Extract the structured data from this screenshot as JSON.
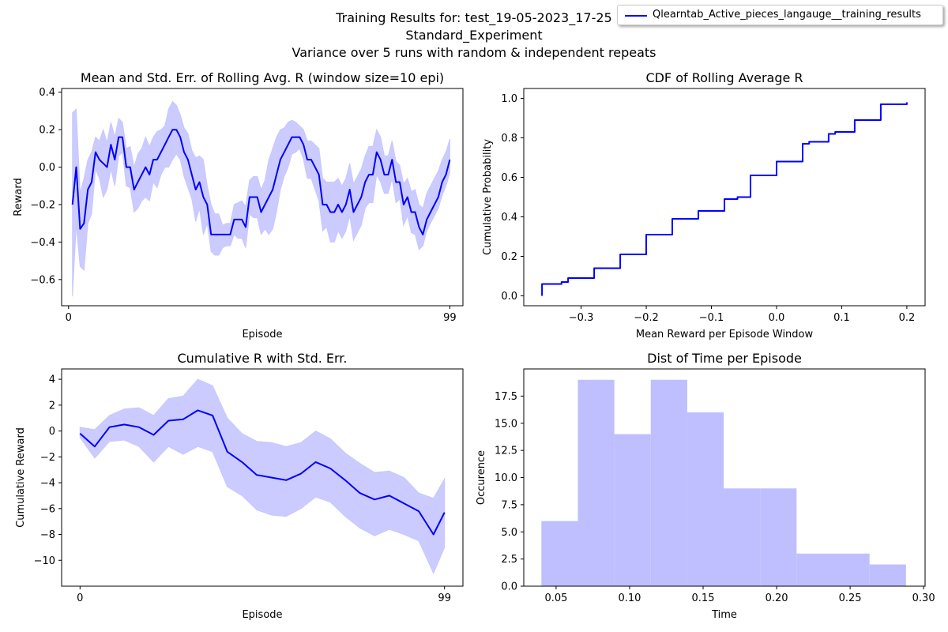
{
  "suptitle": {
    "line1": "Training Results for: test_19-05-2023_17-25",
    "line2": "Standard_Experiment",
    "line3": "Variance over 5 runs with random & independent repeats"
  },
  "legend": {
    "label": "Qlearntab_Active_pieces_langauge__training_results",
    "color": "#0000ff"
  },
  "colors": {
    "line": "#0000ff",
    "band": "#c8c8ff",
    "hist": "#bfbfff"
  },
  "chart_data": [
    {
      "type": "line",
      "title": "Mean and Std. Err. of Rolling Avg. R (window size=10 epi)",
      "xlabel": "Episode",
      "ylabel": "Reward",
      "xlim": [
        -1.8,
        102.4
      ],
      "ylim": [
        -0.74,
        0.42
      ],
      "xticks": [
        0,
        99
      ],
      "yticks": [
        -0.6,
        -0.4,
        -0.2,
        0.0,
        0.2,
        0.4
      ],
      "ytick_labels": [
        "−0.6",
        "−0.4",
        "−0.2",
        "0.0",
        "0.2",
        "0.4"
      ],
      "x": [
        1,
        2,
        3,
        4,
        5,
        6,
        7,
        8,
        9,
        10,
        11,
        12,
        13,
        14,
        15,
        16,
        17,
        18,
        19,
        20,
        21,
        22,
        23,
        24,
        25,
        26,
        27,
        28,
        29,
        30,
        31,
        32,
        33,
        34,
        35,
        36,
        37,
        38,
        39,
        40,
        41,
        42,
        43,
        44,
        45,
        46,
        47,
        48,
        49,
        50,
        51,
        52,
        53,
        54,
        55,
        56,
        57,
        58,
        59,
        60,
        61,
        62,
        63,
        64,
        65,
        66,
        67,
        68,
        69,
        70,
        71,
        72,
        73,
        74,
        75,
        76,
        77,
        78,
        79,
        80,
        81,
        82,
        83,
        84,
        85,
        86,
        87,
        88,
        89,
        90,
        91,
        92,
        93,
        94,
        95,
        96,
        97,
        98,
        99
      ],
      "mean": [
        -0.2,
        0.0,
        -0.33,
        -0.3,
        -0.12,
        -0.08,
        0.08,
        0.04,
        0.02,
        0.0,
        0.12,
        0.04,
        0.16,
        0.16,
        0.0,
        0.0,
        -0.12,
        -0.08,
        -0.04,
        0.0,
        -0.04,
        0.04,
        0.04,
        0.08,
        0.12,
        0.16,
        0.2,
        0.2,
        0.16,
        0.08,
        0.04,
        -0.04,
        -0.12,
        -0.08,
        -0.16,
        -0.2,
        -0.36,
        -0.36,
        -0.36,
        -0.36,
        -0.36,
        -0.36,
        -0.28,
        -0.28,
        -0.28,
        -0.32,
        -0.16,
        -0.16,
        -0.16,
        -0.24,
        -0.2,
        -0.16,
        -0.12,
        -0.04,
        0.04,
        0.08,
        0.12,
        0.16,
        0.16,
        0.16,
        0.12,
        0.04,
        0.04,
        0.0,
        -0.04,
        -0.2,
        -0.2,
        -0.24,
        -0.24,
        -0.2,
        -0.24,
        -0.2,
        -0.12,
        -0.24,
        -0.2,
        -0.16,
        -0.08,
        -0.04,
        -0.04,
        0.08,
        0.04,
        -0.04,
        -0.04,
        0.04,
        -0.08,
        -0.08,
        -0.2,
        -0.16,
        -0.24,
        -0.24,
        -0.32,
        -0.36,
        -0.28,
        -0.24,
        -0.2,
        -0.16,
        -0.08,
        -0.04,
        0.04
      ],
      "upper": [
        0.29,
        0.31,
        -0.14,
        -0.06,
        0.04,
        0.08,
        0.16,
        0.14,
        0.2,
        0.13,
        0.24,
        0.16,
        0.26,
        0.24,
        0.1,
        0.11,
        0.0,
        0.07,
        0.1,
        0.16,
        0.11,
        0.16,
        0.19,
        0.2,
        0.22,
        0.31,
        0.35,
        0.33,
        0.28,
        0.21,
        0.18,
        0.09,
        0.05,
        0.06,
        0.04,
        -0.1,
        -0.2,
        -0.25,
        -0.25,
        -0.31,
        -0.3,
        -0.3,
        -0.2,
        -0.19,
        -0.18,
        -0.21,
        -0.07,
        -0.05,
        -0.05,
        -0.12,
        -0.07,
        0.04,
        0.1,
        0.16,
        0.2,
        0.21,
        0.24,
        0.25,
        0.24,
        0.22,
        0.2,
        0.14,
        0.14,
        0.12,
        0.1,
        -0.06,
        -0.08,
        -0.08,
        -0.08,
        -0.06,
        -0.1,
        -0.06,
        0.02,
        -0.09,
        -0.05,
        -0.01,
        0.06,
        0.11,
        0.11,
        0.2,
        0.16,
        0.06,
        0.06,
        0.14,
        0.03,
        0.01,
        -0.09,
        -0.06,
        -0.13,
        -0.12,
        -0.2,
        -0.22,
        -0.14,
        -0.1,
        -0.06,
        -0.02,
        0.04,
        0.08,
        0.15
      ],
      "lower": [
        -0.69,
        -0.31,
        -0.53,
        -0.55,
        -0.3,
        -0.25,
        -0.01,
        -0.06,
        -0.16,
        -0.12,
        -0.01,
        -0.1,
        0.06,
        0.08,
        -0.1,
        -0.11,
        -0.24,
        -0.22,
        -0.18,
        -0.16,
        -0.18,
        -0.08,
        -0.11,
        -0.04,
        0.0,
        0.0,
        0.04,
        0.07,
        0.04,
        -0.05,
        -0.11,
        -0.17,
        -0.29,
        -0.22,
        -0.36,
        -0.3,
        -0.45,
        -0.47,
        -0.47,
        -0.43,
        -0.42,
        -0.42,
        -0.36,
        -0.38,
        -0.38,
        -0.43,
        -0.25,
        -0.27,
        -0.27,
        -0.36,
        -0.33,
        -0.36,
        -0.33,
        -0.24,
        -0.12,
        -0.05,
        0.0,
        0.07,
        0.08,
        0.1,
        0.04,
        -0.06,
        -0.06,
        -0.12,
        -0.18,
        -0.34,
        -0.32,
        -0.4,
        -0.4,
        -0.34,
        -0.38,
        -0.34,
        -0.26,
        -0.39,
        -0.35,
        -0.31,
        -0.22,
        -0.19,
        -0.19,
        -0.04,
        -0.08,
        -0.14,
        -0.14,
        -0.06,
        -0.19,
        -0.17,
        -0.31,
        -0.26,
        -0.35,
        -0.36,
        -0.44,
        -0.42,
        -0.34,
        -0.3,
        -0.26,
        -0.22,
        -0.15,
        -0.1,
        -0.03
      ]
    },
    {
      "type": "line",
      "title": "CDF of Rolling Average R",
      "xlabel": "Mean Reward per Episode Window",
      "ylabel": "Cumulative Probability",
      "xlim": [
        -0.388,
        0.228
      ],
      "ylim": [
        -0.05,
        1.05
      ],
      "xticks": [
        -0.3,
        -0.2,
        -0.1,
        0.0,
        0.1,
        0.2
      ],
      "xtick_labels": [
        "−0.3",
        "−0.2",
        "−0.1",
        "0.0",
        "0.1",
        "0.2"
      ],
      "yticks": [
        0.0,
        0.2,
        0.4,
        0.6,
        0.8,
        1.0
      ],
      "ytick_labels": [
        "0.0",
        "0.2",
        "0.4",
        "0.6",
        "0.8",
        "1.0"
      ],
      "x": [
        -0.36,
        -0.36,
        -0.33,
        -0.32,
        -0.32,
        -0.28,
        -0.28,
        -0.24,
        -0.24,
        -0.2,
        -0.2,
        -0.16,
        -0.16,
        -0.12,
        -0.12,
        -0.08,
        -0.08,
        -0.06,
        -0.04,
        -0.04,
        0.0,
        0.0,
        0.04,
        0.04,
        0.05,
        0.08,
        0.08,
        0.09,
        0.12,
        0.12,
        0.16,
        0.16,
        0.2
      ],
      "y": [
        0.0,
        0.06,
        0.07,
        0.08,
        0.09,
        0.11,
        0.14,
        0.15,
        0.21,
        0.22,
        0.31,
        0.32,
        0.39,
        0.4,
        0.43,
        0.44,
        0.49,
        0.5,
        0.51,
        0.61,
        0.62,
        0.68,
        0.7,
        0.77,
        0.78,
        0.79,
        0.82,
        0.83,
        0.84,
        0.89,
        0.9,
        0.97,
        0.98
      ]
    },
    {
      "type": "line",
      "title": "Cumulative R with Std. Err.",
      "xlabel": "Episode",
      "ylabel": "Cumulative Reward",
      "xlim": [
        -5.0,
        104.0
      ],
      "ylim": [
        -12.0,
        4.8
      ],
      "xticks": [
        0,
        99
      ],
      "yticks": [
        -10,
        -8,
        -6,
        -4,
        -2,
        0,
        2,
        4
      ],
      "ytick_labels": [
        "−10",
        "−8",
        "−6",
        "−4",
        "−2",
        "0",
        "2",
        "4"
      ],
      "x": [
        0,
        4,
        8,
        12,
        16,
        20,
        24,
        28,
        32,
        36,
        40,
        44,
        48,
        52,
        56,
        60,
        64,
        68,
        72,
        76,
        80,
        84,
        88,
        92,
        96,
        99
      ],
      "mean": [
        -0.2,
        -1.2,
        0.3,
        0.5,
        0.3,
        -0.3,
        0.8,
        0.9,
        1.6,
        1.2,
        -1.6,
        -2.4,
        -3.4,
        -3.6,
        -3.8,
        -3.3,
        -2.4,
        -2.9,
        -3.8,
        -4.8,
        -5.3,
        -5.0,
        -5.6,
        -6.2,
        -8.0,
        -6.3
      ],
      "upper": [
        0.3,
        0.1,
        1.2,
        1.7,
        1.8,
        1.2,
        2.5,
        2.7,
        4.0,
        3.5,
        1.0,
        -0.2,
        -0.8,
        -0.9,
        -1.2,
        -0.9,
        0.0,
        -0.6,
        -1.7,
        -2.5,
        -3.2,
        -3.1,
        -3.6,
        -4.8,
        -5.2,
        -3.7
      ],
      "lower": [
        -0.5,
        -2.1,
        -0.8,
        -0.7,
        -1.2,
        -2.4,
        -1.2,
        -1.8,
        -1.2,
        -1.6,
        -4.3,
        -5.0,
        -6.1,
        -6.5,
        -6.6,
        -6.0,
        -5.1,
        -5.5,
        -6.6,
        -7.5,
        -8.1,
        -7.6,
        -8.0,
        -8.5,
        -11.0,
        -9.0
      ]
    },
    {
      "type": "bar",
      "title": "Dist of Time per Episode",
      "xlabel": "Time",
      "ylabel": "Occurence",
      "xlim": [
        0.028,
        0.301
      ],
      "ylim": [
        0,
        20.0
      ],
      "xticks": [
        0.05,
        0.1,
        0.15,
        0.2,
        0.25,
        0.3
      ],
      "xtick_labels": [
        "0.05",
        "0.10",
        "0.15",
        "0.20",
        "0.25",
        "0.30"
      ],
      "yticks": [
        0.0,
        2.5,
        5.0,
        7.5,
        10.0,
        12.5,
        15.0,
        17.5
      ],
      "ytick_labels": [
        "0.0",
        "2.5",
        "5.0",
        "7.5",
        "10.0",
        "12.5",
        "15.0",
        "17.5"
      ],
      "bin_edges": [
        0.04,
        0.0648,
        0.0896,
        0.1144,
        0.1392,
        0.164,
        0.1888,
        0.2136,
        0.2384,
        0.2632,
        0.288
      ],
      "values": [
        6,
        19,
        14,
        19,
        16,
        9,
        9,
        3,
        3,
        2
      ]
    }
  ]
}
